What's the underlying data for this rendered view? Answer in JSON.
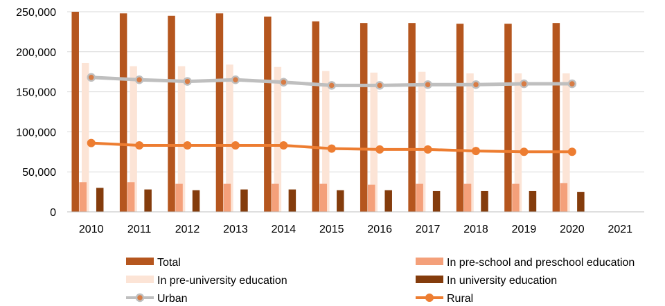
{
  "chart_data": {
    "type": "bar",
    "title": "",
    "xlabel": "",
    "ylabel": "",
    "categories": [
      "2010",
      "2011",
      "2012",
      "2013",
      "2014",
      "2015",
      "2016",
      "2017",
      "2018",
      "2019",
      "2020",
      "2021"
    ],
    "ylim": [
      0,
      250000
    ],
    "yticks": [
      0,
      50000,
      100000,
      150000,
      200000,
      250000
    ],
    "ytick_labels": [
      "0",
      "50,000",
      "100,000",
      "150,000",
      "200,000",
      "250,000"
    ],
    "grid": "horizontal",
    "legend_position": "bottom",
    "bar_series": [
      {
        "name": "Total",
        "color": "#B5561E",
        "values": [
          250000,
          248000,
          245000,
          248000,
          244000,
          238000,
          236000,
          236000,
          235000,
          235000,
          236000,
          null
        ]
      },
      {
        "name": "In pre-university education",
        "color": "#FCE4D6",
        "values": [
          186000,
          182000,
          182000,
          184000,
          181000,
          176000,
          174000,
          175000,
          173000,
          173000,
          173000,
          null
        ]
      },
      {
        "name": "In pre-school and preschool education",
        "color": "#F4A07A",
        "values": [
          37000,
          37000,
          35000,
          35000,
          35000,
          35000,
          34000,
          35000,
          35000,
          35000,
          36000,
          null
        ]
      },
      {
        "name": "In university education",
        "color": "#843C0C",
        "values": [
          30000,
          28000,
          27000,
          28000,
          28000,
          27000,
          27000,
          26000,
          26000,
          26000,
          25000,
          null
        ]
      }
    ],
    "line_series": [
      {
        "name": "Urban",
        "color": "#BFBFBF",
        "marker_color": "#D77C45",
        "values": [
          168000,
          165000,
          163000,
          165000,
          162000,
          158000,
          158000,
          159000,
          159000,
          160000,
          160000,
          null
        ]
      },
      {
        "name": "Rural",
        "color": "#ED7D31",
        "marker_color": "#ED7D31",
        "values": [
          86000,
          83000,
          83000,
          83000,
          83000,
          79000,
          78000,
          78000,
          76000,
          75000,
          75000,
          null
        ]
      }
    ],
    "legend": [
      {
        "name": "Total",
        "kind": "bar",
        "color": "#B5561E"
      },
      {
        "name": "In pre-school and preschool education",
        "kind": "bar",
        "color": "#F4A07A"
      },
      {
        "name": "In pre-university education",
        "kind": "bar",
        "color": "#FCE4D6"
      },
      {
        "name": "In university education",
        "kind": "bar",
        "color": "#843C0C"
      },
      {
        "name": "Urban",
        "kind": "line",
        "color": "#BFBFBF",
        "marker_color": "#D77C45"
      },
      {
        "name": "Rural",
        "kind": "line",
        "color": "#ED7D31",
        "marker_color": "#ED7D31"
      }
    ]
  }
}
